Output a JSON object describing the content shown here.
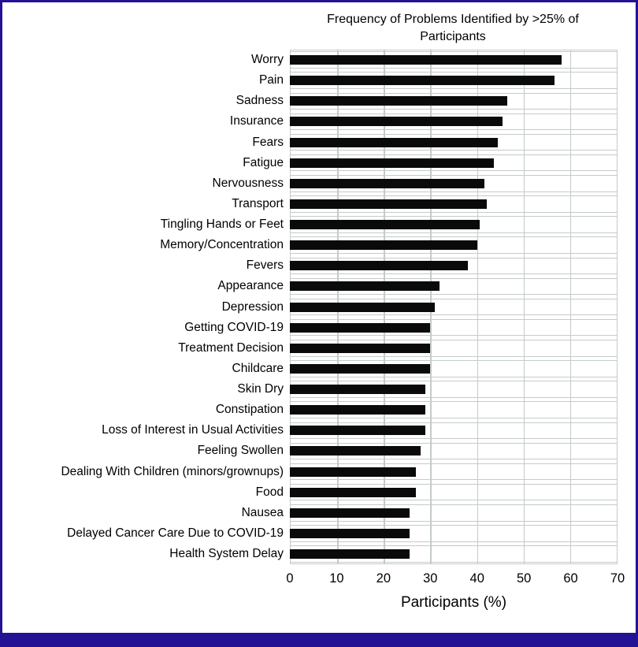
{
  "figure": {
    "title_line1": "Frequency of Problems Identified by >25% of",
    "title_line2": "Participants",
    "x_axis_label": "Participants (%)"
  },
  "colors": {
    "accent_border": "#241295",
    "gridline": "#c4cbc9",
    "bar": "#0a0a0a",
    "text": "#000000",
    "background": "#ffffff"
  },
  "chart_data": {
    "type": "bar",
    "orientation": "horizontal",
    "title": "Frequency of Problems Identified by >25% of Participants",
    "xlabel": "Participants (%)",
    "ylabel": "",
    "xlim": [
      0,
      70
    ],
    "x_ticks": [
      0,
      10,
      20,
      30,
      40,
      50,
      60,
      70
    ],
    "grid": true,
    "legend": "none",
    "bar_color": "#0a0a0a",
    "categories": [
      "Worry",
      "Pain",
      "Sadness",
      "Insurance",
      "Fears",
      "Fatigue",
      "Nervousness",
      "Transport",
      "Tingling Hands or Feet",
      "Memory/Concentration",
      "Fevers",
      "Appearance",
      "Depression",
      "Getting COVID-19",
      "Treatment Decision",
      "Childcare",
      "Skin Dry",
      "Constipation",
      "Loss of Interest in Usual Activities",
      "Feeling Swollen",
      "Dealing With Children (minors/grownups)",
      "Food",
      "Nausea",
      "Delayed Cancer Care Due to COVID-19",
      "Health System Delay"
    ],
    "values": [
      58,
      56.5,
      46.5,
      45.5,
      44.5,
      43.5,
      41.5,
      42,
      40.5,
      40,
      38,
      32,
      31,
      30,
      30,
      30,
      29,
      29,
      29,
      28,
      27,
      27,
      25.5,
      25.5,
      25.5
    ]
  }
}
